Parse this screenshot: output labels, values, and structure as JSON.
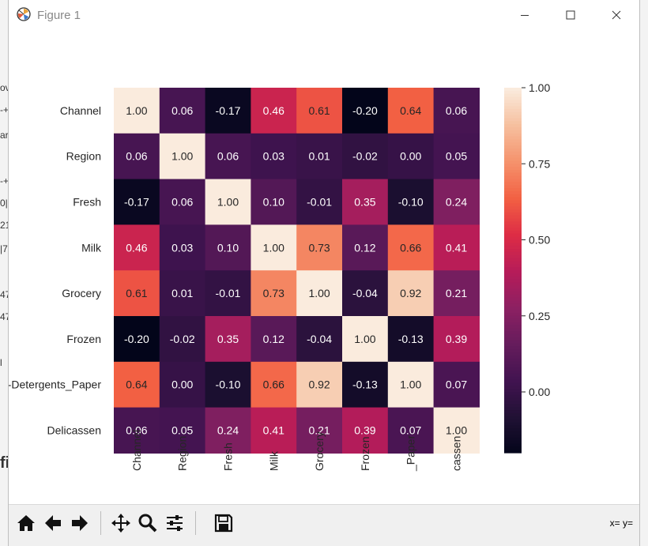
{
  "window": {
    "title": "Figure 1",
    "minimize_glyph": "—",
    "maximize_glyph": "☐",
    "close_glyph": "✕"
  },
  "background_fragments": [
    "ov",
    "-+",
    "ar",
    "-+",
    "0|",
    "21",
    "|7",
    "47",
    "47",
    "l",
    "fi"
  ],
  "chart_data": {
    "type": "heatmap",
    "rows": [
      "Channel",
      "Region",
      "Fresh",
      "Milk",
      "Grocery",
      "Frozen",
      "Detergents_Paper",
      "Delicassen"
    ],
    "row_labels_displayed": [
      "Channel",
      "Region",
      "Fresh",
      "Milk",
      "Grocery",
      "Frozen",
      "-Detergents_Paper",
      "Delicassen"
    ],
    "col_labels_displayed": [
      "Channel",
      "Region",
      "Fresh",
      "Milk",
      "Grocery",
      "Frozen",
      "_Paper",
      "cassen"
    ],
    "values": [
      [
        1.0,
        0.06,
        -0.17,
        0.46,
        0.61,
        -0.2,
        0.64,
        0.06
      ],
      [
        0.06,
        1.0,
        0.06,
        0.03,
        0.01,
        -0.02,
        -0.0,
        0.05
      ],
      [
        -0.17,
        0.06,
        1.0,
        0.1,
        -0.01,
        0.35,
        -0.1,
        0.24
      ],
      [
        0.46,
        0.03,
        0.1,
        1.0,
        0.73,
        0.12,
        0.66,
        0.41
      ],
      [
        0.61,
        0.01,
        -0.01,
        0.73,
        1.0,
        -0.04,
        0.92,
        0.21
      ],
      [
        -0.2,
        -0.02,
        0.35,
        0.12,
        -0.04,
        1.0,
        -0.13,
        0.39
      ],
      [
        0.64,
        -0.0,
        -0.1,
        0.66,
        0.92,
        -0.13,
        1.0,
        0.07
      ],
      [
        0.06,
        0.05,
        0.24,
        0.41,
        0.21,
        0.39,
        0.07,
        1.0
      ]
    ],
    "annot_format": "2 decimals",
    "vmin": -0.2,
    "vmax": 1.0,
    "colormap": "rocket",
    "colorbar_ticks": [
      1.0,
      0.75,
      0.5,
      0.25,
      0.0
    ],
    "colorbar_tick_labels": [
      "1.00",
      "0.75",
      "0.50",
      "0.25",
      "0.00"
    ],
    "title": "",
    "xlabel": "",
    "ylabel": ""
  },
  "toolbar": {
    "buttons": [
      "home",
      "back",
      "forward",
      "pan",
      "zoom",
      "configure-subplots",
      "save"
    ],
    "coords_text": "x= y="
  }
}
